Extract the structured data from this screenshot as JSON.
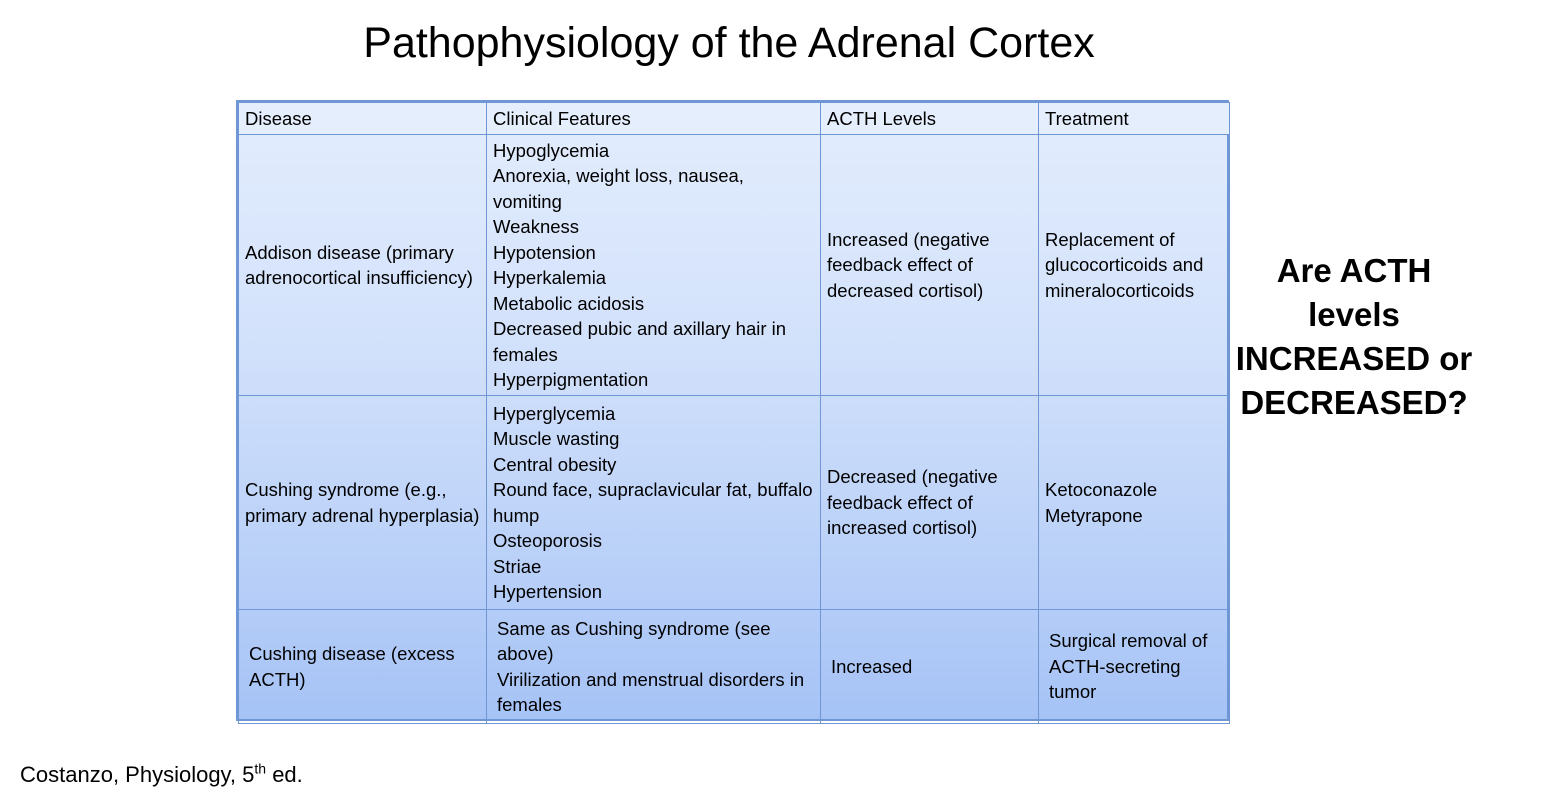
{
  "title": "Pathophysiology of the Adrenal Cortex",
  "table": {
    "headers": [
      "Disease",
      "Clinical Features",
      "ACTH Levels",
      "Treatment"
    ],
    "rows": [
      {
        "disease": "Addison disease (primary adrenocortical insufficiency)",
        "features": [
          "Hypoglycemia",
          "Anorexia, weight loss, nausea, vomiting",
          "Weakness",
          "Hypotension",
          "Hyperkalemia",
          "Metabolic acidosis",
          "Decreased pubic and axillary hair in females",
          "Hyperpigmentation"
        ],
        "acth": "Increased (negative feedback effect of decreased cortisol)",
        "treatment": "Replacement of glucocorticoids and mineralocorticoids"
      },
      {
        "disease": "Cushing syndrome (e.g., primary adrenal hyperplasia)",
        "features": [
          "Hyperglycemia",
          "Muscle wasting",
          "Central obesity",
          "Round face, supraclavicular fat, buffalo hump",
          "Osteoporosis",
          "Striae",
          "Hypertension"
        ],
        "acth": "Decreased (negative feedback effect of increased cortisol)",
        "treatment": [
          "Ketoconazole",
          "Metyrapone"
        ]
      },
      {
        "disease": "Cushing disease (excess ACTH)",
        "features": [
          "Same as Cushing syndrome (see above)",
          "Virilization and menstrual disorders in females"
        ],
        "acth": "Increased",
        "treatment": "Surgical removal of ACTH-secreting tumor"
      }
    ]
  },
  "question": {
    "line1": "Are ACTH levels",
    "line2": "INCREASED or",
    "line3": "DECREASED?"
  },
  "citation": {
    "text": "Costanzo, Physiology, 5",
    "superscript": "th",
    "suffix": " ed."
  }
}
